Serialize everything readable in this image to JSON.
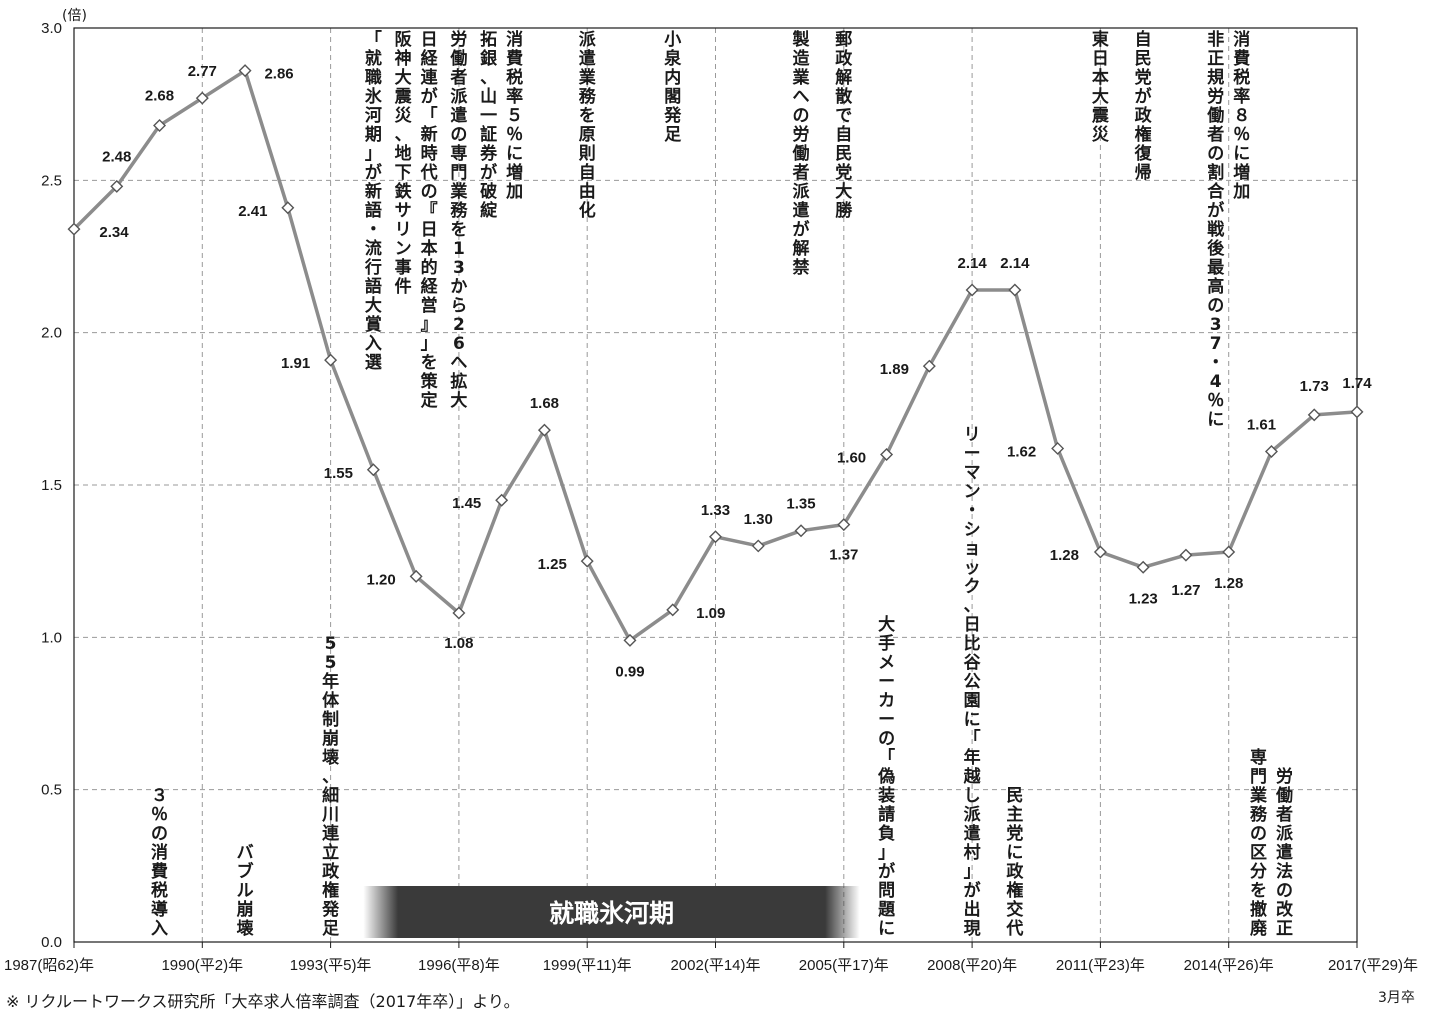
{
  "chart_data": {
    "type": "line",
    "y_unit": "(倍)",
    "ylim": [
      0,
      3.0
    ],
    "y_ticks": [
      "0.0",
      "0.5",
      "1.0",
      "1.5",
      "2.0",
      "2.5",
      "3.0"
    ],
    "x_tick_labels": [
      "1987(昭62)年",
      "1990(平2)年",
      "1993(平5)年",
      "1996(平8)年",
      "1999(平11)年",
      "2002(平14)年",
      "2005(平17)年",
      "2008(平20)年",
      "2011(平23)年",
      "2014(平26)年",
      "2017(平29)年"
    ],
    "x": [
      1987,
      1988,
      1989,
      1990,
      1991,
      1992,
      1993,
      1994,
      1995,
      1996,
      1997,
      1998,
      1999,
      2000,
      2001,
      2002,
      2003,
      2004,
      2005,
      2006,
      2007,
      2008,
      2009,
      2010,
      2011,
      2012,
      2013,
      2014,
      2015,
      2016,
      2017
    ],
    "values": [
      2.34,
      2.48,
      2.68,
      2.77,
      2.86,
      2.41,
      1.91,
      1.55,
      1.2,
      1.08,
      1.45,
      1.68,
      1.25,
      0.99,
      1.09,
      1.33,
      1.3,
      1.35,
      1.37,
      1.6,
      1.89,
      2.14,
      2.14,
      1.62,
      1.28,
      1.23,
      1.27,
      1.28,
      1.61,
      1.73,
      1.74
    ],
    "data_labels": [
      "2.34",
      "2.48",
      "2.68",
      "2.77",
      "2.86",
      "2.41",
      "1.91",
      "1.55",
      "1.20",
      "1.08",
      "1.45",
      "1.68",
      "1.25",
      "0.99",
      "1.09",
      "1.33",
      "1.30",
      "1.35",
      "1.37",
      "1.60",
      "1.89",
      "2.14",
      "2.14",
      "1.62",
      "1.28",
      "1.23",
      "1.27",
      "1.28",
      "1.61",
      "1.73",
      "1.74"
    ],
    "grid": true,
    "line_color": "#8c8c8c",
    "marker_stroke": "#555555",
    "band": {
      "label": "就職氷河期",
      "color": "#3a3a3a"
    },
    "events": [
      {
        "year": 1989,
        "text": "３％の消費税導入",
        "pos": "bottom"
      },
      {
        "year": 1991,
        "text": "バブル崩壊",
        "pos": "bottom"
      },
      {
        "year": 1993,
        "text": "55年体制崩壊、細川連立政権発足",
        "pos": "bottom"
      },
      {
        "year": 1994,
        "text": "「就職氷河期」が新語・流行語大賞入選",
        "pos": "top"
      },
      {
        "year": 1995,
        "text": "阪神大震災、地下鉄サリン事件",
        "pos": "top"
      },
      {
        "year": 1995,
        "text": "日経連が「新時代の『日本的経営』」を策定",
        "pos": "top"
      },
      {
        "year": 1996,
        "text": "労働者派遣の専門業務を13から26へ拡大",
        "pos": "top"
      },
      {
        "year": 1997,
        "text": "拓銀、山一証券が破綻",
        "pos": "top"
      },
      {
        "year": 1997,
        "text": "消費税率５％に増加",
        "pos": "top"
      },
      {
        "year": 1999,
        "text": "派遣業務を原則自由化",
        "pos": "top"
      },
      {
        "year": 2001,
        "text": "小泉内閣発足",
        "pos": "top"
      },
      {
        "year": 2004,
        "text": "製造業への労働者派遣が解禁",
        "pos": "top"
      },
      {
        "year": 2005,
        "text": "郵政解散で自民党大勝",
        "pos": "top"
      },
      {
        "year": 2006,
        "text": "大手メーカーの「偽装請負」が問題に",
        "pos": "bottom"
      },
      {
        "year": 2008,
        "text": "リーマン・ショック、日比谷公園に「年越し派遣村」が出現",
        "pos": "full"
      },
      {
        "year": 2009,
        "text": "民主党に政権交代",
        "pos": "bottom"
      },
      {
        "year": 2011,
        "text": "東日本大震災",
        "pos": "top"
      },
      {
        "year": 2012,
        "text": "自民党が政権復帰",
        "pos": "top"
      },
      {
        "year": 2014,
        "text": "非正規労働者の割合が戦後最高の37・4％に",
        "pos": "top"
      },
      {
        "year": 2014,
        "text": "消費税率８％に増加",
        "pos": "top"
      },
      {
        "year": 2015,
        "text": "専門業務の区分を撤廃",
        "pos": "bottom"
      },
      {
        "year": 2015,
        "text": "労働者派遣法の改正",
        "pos": "bottom"
      }
    ]
  },
  "footnote": "※ リクルートワークス研究所「大卒求人倍率調査（2017年卒）」より。",
  "graduation_note": "3月卒"
}
